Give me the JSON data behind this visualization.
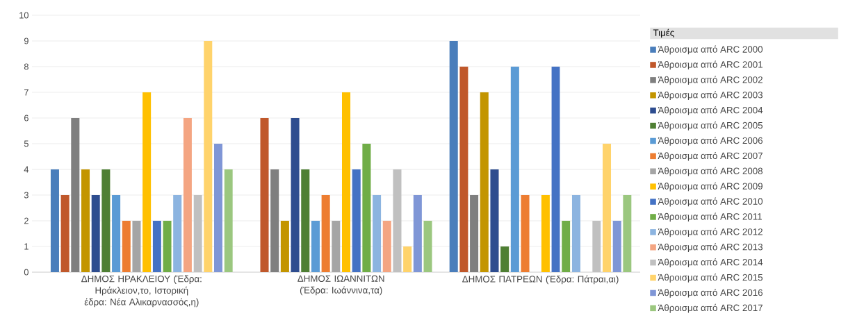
{
  "chart_data": {
    "type": "bar",
    "categories": [
      "ΔΗΜΟΣ ΗΡΑΚΛΕΙΟΥ (Έδρα: Ηράκλειον,το, Ιστορική έδρα: Νέα Αλικαρνασσός,η)",
      "ΔΗΜΟΣ ΙΩΑΝΝΙΤΩΝ (Έδρα: Ιωάννινα,τα)",
      "ΔΗΜΟΣ ΠΑΤΡΕΩΝ (Έδρα: Πάτραι,αι)"
    ],
    "legend_title": "Τιμές",
    "series": [
      {
        "name": "Άθροισμα από ARC 2000",
        "color": "#4a7ebb",
        "values": [
          4,
          null,
          9
        ]
      },
      {
        "name": "Άθροισμα από ARC 2001",
        "color": "#c0582b",
        "values": [
          3,
          6,
          8
        ]
      },
      {
        "name": "Άθροισμα από ARC 2002",
        "color": "#7f7f7f",
        "values": [
          6,
          4,
          3
        ]
      },
      {
        "name": "Άθροισμα από ARC 2003",
        "color": "#c39500",
        "values": [
          4,
          2,
          7
        ]
      },
      {
        "name": "Άθροισμα από ARC 2004",
        "color": "#2e4d8f",
        "values": [
          3,
          6,
          4
        ]
      },
      {
        "name": "Άθροισμα από ARC 2005",
        "color": "#4f7f34",
        "values": [
          4,
          4,
          1
        ]
      },
      {
        "name": "Άθροισμα από ARC 2006",
        "color": "#5b9bd5",
        "values": [
          3,
          2,
          8
        ]
      },
      {
        "name": "Άθροισμα από ARC 2007",
        "color": "#ed7d31",
        "values": [
          2,
          3,
          3
        ]
      },
      {
        "name": "Άθροισμα από ARC 2008",
        "color": "#a5a5a5",
        "values": [
          2,
          2,
          null
        ]
      },
      {
        "name": "Άθροισμα από ARC 2009",
        "color": "#ffc000",
        "values": [
          7,
          7,
          3
        ]
      },
      {
        "name": "Άθροισμα από ARC 2010",
        "color": "#4472c4",
        "values": [
          2,
          4,
          8
        ]
      },
      {
        "name": "Άθροισμα από ARC 2011",
        "color": "#70ad47",
        "values": [
          2,
          5,
          2
        ]
      },
      {
        "name": "Άθροισμα από ARC 2012",
        "color": "#8cb4e0",
        "values": [
          3,
          3,
          3
        ]
      },
      {
        "name": "Άθροισμα από ARC 2013",
        "color": "#f4a582",
        "values": [
          6,
          2,
          null
        ]
      },
      {
        "name": "Άθροισμα από ARC 2014",
        "color": "#c0c0c0",
        "values": [
          3,
          4,
          2
        ]
      },
      {
        "name": "Άθροισμα από ARC 2015",
        "color": "#ffd36b",
        "values": [
          9,
          1,
          5
        ]
      },
      {
        "name": "Άθροισμα από ARC 2016",
        "color": "#7f96d6",
        "values": [
          5,
          3,
          2
        ]
      },
      {
        "name": "Άθροισμα από ARC 2017",
        "color": "#9bc77f",
        "values": [
          4,
          2,
          3
        ]
      }
    ],
    "ylim": [
      0,
      10
    ],
    "yticks": [
      0,
      1,
      2,
      3,
      4,
      5,
      6,
      7,
      8,
      9,
      10
    ],
    "grid": "y",
    "legend": "right"
  }
}
